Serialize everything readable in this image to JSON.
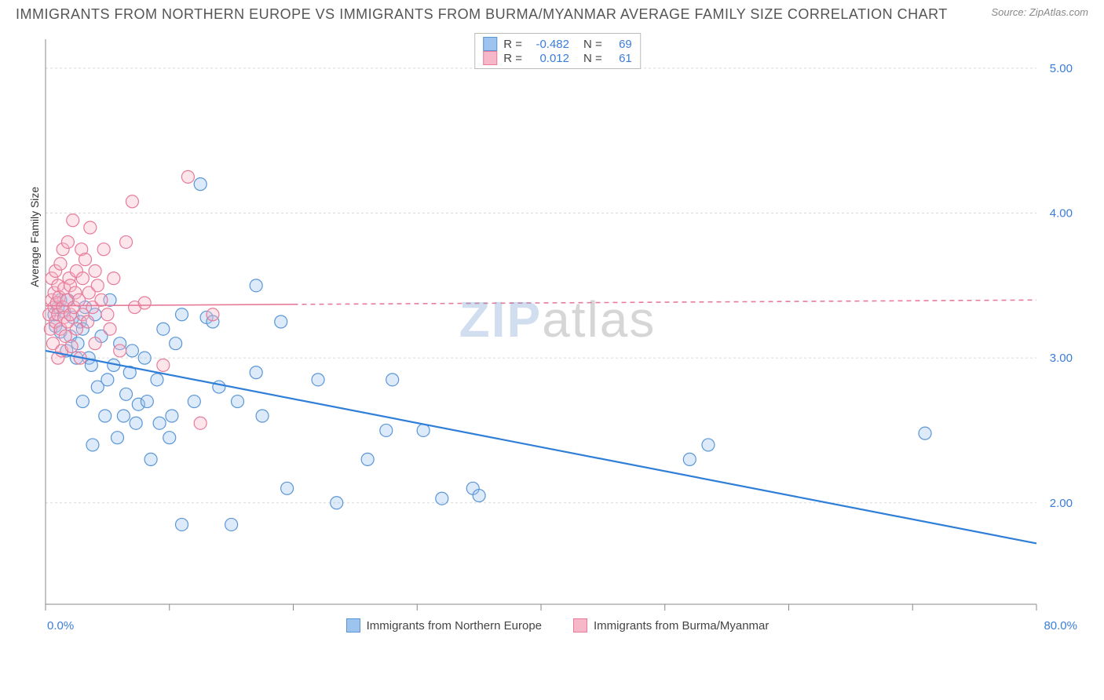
{
  "header": {
    "title": "IMMIGRANTS FROM NORTHERN EUROPE VS IMMIGRANTS FROM BURMA/MYANMAR AVERAGE FAMILY SIZE CORRELATION CHART",
    "source_label": "Source: ZipAtlas.com"
  },
  "watermark": {
    "part1": "ZIP",
    "part2": "atlas"
  },
  "chart": {
    "type": "scatter",
    "ylabel": "Average Family Size",
    "xlim": [
      0,
      80
    ],
    "ylim": [
      1.3,
      5.2
    ],
    "xticks": [
      0,
      10,
      20,
      30,
      40,
      50,
      60,
      70,
      80
    ],
    "yticks": [
      2.0,
      3.0,
      4.0,
      5.0
    ],
    "xlabel_min": "0.0%",
    "xlabel_max": "80.0%",
    "grid_color": "#d9d9d9",
    "axis_color": "#888888",
    "background_color": "#ffffff",
    "marker_radius": 8,
    "marker_stroke_width": 1.2,
    "marker_fill_opacity": 0.35,
    "label_fontsize": 14,
    "tick_fontsize": 15,
    "tick_color": "#3b7dd8",
    "series": [
      {
        "key": "northern_europe",
        "label": "Immigrants from Northern Europe",
        "color": "#9dc3ef",
        "stroke": "#5a96d6",
        "trend": {
          "y_at_xmin": 3.05,
          "y_at_xmax": 1.72,
          "solid_until_x": 80,
          "dash_after": false,
          "line_color": "#2f7ed8",
          "line_width": 2.2
        },
        "R": "-0.482",
        "N": "69",
        "points": [
          [
            0.7,
            3.3
          ],
          [
            0.8,
            3.22
          ],
          [
            1.0,
            3.35
          ],
          [
            1.2,
            3.18
          ],
          [
            1.2,
            3.4
          ],
          [
            1.5,
            3.32
          ],
          [
            1.7,
            3.05
          ],
          [
            1.8,
            3.4
          ],
          [
            2.0,
            3.15
          ],
          [
            2.2,
            3.28
          ],
          [
            2.5,
            3.0
          ],
          [
            2.6,
            3.1
          ],
          [
            2.8,
            3.25
          ],
          [
            3.0,
            3.2
          ],
          [
            3.0,
            2.7
          ],
          [
            3.2,
            3.35
          ],
          [
            3.5,
            3.0
          ],
          [
            3.7,
            2.95
          ],
          [
            3.8,
            2.4
          ],
          [
            4.0,
            3.3
          ],
          [
            4.2,
            2.8
          ],
          [
            4.5,
            3.15
          ],
          [
            4.8,
            2.6
          ],
          [
            5.0,
            2.85
          ],
          [
            5.2,
            3.4
          ],
          [
            5.5,
            2.95
          ],
          [
            5.8,
            2.45
          ],
          [
            6.0,
            3.1
          ],
          [
            6.3,
            2.6
          ],
          [
            6.5,
            2.75
          ],
          [
            6.8,
            2.9
          ],
          [
            7.0,
            3.05
          ],
          [
            7.3,
            2.55
          ],
          [
            7.5,
            2.68
          ],
          [
            8.0,
            3.0
          ],
          [
            8.2,
            2.7
          ],
          [
            8.5,
            2.3
          ],
          [
            9.0,
            2.85
          ],
          [
            9.2,
            2.55
          ],
          [
            9.5,
            3.2
          ],
          [
            10.0,
            2.45
          ],
          [
            10.2,
            2.6
          ],
          [
            10.5,
            3.1
          ],
          [
            11.0,
            1.85
          ],
          [
            11.0,
            3.3
          ],
          [
            12.0,
            2.7
          ],
          [
            12.5,
            4.2
          ],
          [
            13.0,
            3.28
          ],
          [
            13.5,
            3.25
          ],
          [
            14.0,
            2.8
          ],
          [
            15.0,
            1.85
          ],
          [
            15.5,
            2.7
          ],
          [
            17.0,
            3.5
          ],
          [
            17.0,
            2.9
          ],
          [
            17.5,
            2.6
          ],
          [
            19.0,
            3.25
          ],
          [
            19.5,
            2.1
          ],
          [
            22.0,
            2.85
          ],
          [
            23.5,
            2.0
          ],
          [
            26.0,
            2.3
          ],
          [
            27.5,
            2.5
          ],
          [
            28.0,
            2.85
          ],
          [
            30.5,
            2.5
          ],
          [
            32.0,
            2.03
          ],
          [
            34.5,
            2.1
          ],
          [
            35.0,
            2.05
          ],
          [
            52.0,
            2.3
          ],
          [
            53.5,
            2.4
          ],
          [
            71.0,
            2.48
          ]
        ]
      },
      {
        "key": "burma",
        "label": "Immigrants from Burma/Myanmar",
        "color": "#f6b8c8",
        "stroke": "#e77b9a",
        "trend": {
          "y_at_xmin": 3.36,
          "y_at_xmax": 3.4,
          "solid_until_x": 20,
          "dash_after": true,
          "line_color": "#e77b9a",
          "line_width": 1.6
        },
        "R": "0.012",
        "N": "61",
        "points": [
          [
            0.3,
            3.3
          ],
          [
            0.4,
            3.2
          ],
          [
            0.5,
            3.4
          ],
          [
            0.5,
            3.55
          ],
          [
            0.6,
            3.1
          ],
          [
            0.7,
            3.35
          ],
          [
            0.7,
            3.45
          ],
          [
            0.8,
            3.25
          ],
          [
            0.8,
            3.6
          ],
          [
            0.9,
            3.38
          ],
          [
            1.0,
            3.0
          ],
          [
            1.0,
            3.3
          ],
          [
            1.0,
            3.5
          ],
          [
            1.1,
            3.42
          ],
          [
            1.2,
            3.2
          ],
          [
            1.2,
            3.65
          ],
          [
            1.3,
            3.05
          ],
          [
            1.4,
            3.35
          ],
          [
            1.4,
            3.75
          ],
          [
            1.5,
            3.28
          ],
          [
            1.5,
            3.48
          ],
          [
            1.6,
            3.15
          ],
          [
            1.7,
            3.4
          ],
          [
            1.8,
            3.8
          ],
          [
            1.8,
            3.25
          ],
          [
            1.9,
            3.55
          ],
          [
            2.0,
            3.3
          ],
          [
            2.0,
            3.5
          ],
          [
            2.1,
            3.08
          ],
          [
            2.2,
            3.95
          ],
          [
            2.3,
            3.35
          ],
          [
            2.4,
            3.45
          ],
          [
            2.5,
            3.6
          ],
          [
            2.5,
            3.2
          ],
          [
            2.7,
            3.4
          ],
          [
            2.8,
            3.0
          ],
          [
            2.9,
            3.75
          ],
          [
            3.0,
            3.3
          ],
          [
            3.0,
            3.55
          ],
          [
            3.2,
            3.68
          ],
          [
            3.4,
            3.25
          ],
          [
            3.5,
            3.45
          ],
          [
            3.6,
            3.9
          ],
          [
            3.8,
            3.35
          ],
          [
            4.0,
            3.6
          ],
          [
            4.0,
            3.1
          ],
          [
            4.2,
            3.5
          ],
          [
            4.5,
            3.4
          ],
          [
            4.7,
            3.75
          ],
          [
            5.0,
            3.3
          ],
          [
            5.2,
            3.2
          ],
          [
            5.5,
            3.55
          ],
          [
            6.0,
            3.05
          ],
          [
            6.5,
            3.8
          ],
          [
            7.0,
            4.08
          ],
          [
            7.2,
            3.35
          ],
          [
            8.0,
            3.38
          ],
          [
            9.5,
            2.95
          ],
          [
            11.5,
            4.25
          ],
          [
            12.5,
            2.55
          ],
          [
            13.5,
            3.3
          ]
        ]
      }
    ],
    "top_legend": {
      "rows": [
        {
          "swatch_series": "northern_europe",
          "r_label": "R =",
          "n_label": "N ="
        },
        {
          "swatch_series": "burma",
          "r_label": "R =",
          "n_label": "N ="
        }
      ]
    }
  }
}
